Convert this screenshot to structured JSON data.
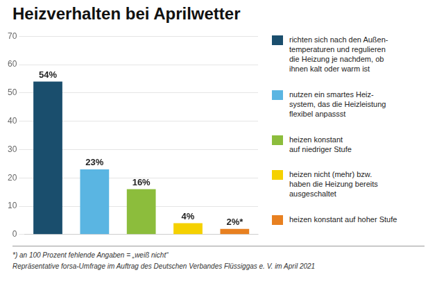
{
  "chart_data": {
    "type": "bar",
    "title": "Heizverhalten bei Aprilwetter",
    "categories": [
      "richten sich nach den Außen-\ntemperaturen und regulieren\ndie Heizung je nachdem, ob\nihnen kalt oder warm ist",
      "nutzen ein smartes Heiz-\nsystem, das die Heizleistung\nflexibel anpassst",
      "heizen konstant\nauf niedriger Stufe",
      "heizen nicht (mehr) bzw.\nhaben die Heizung bereits\nausgeschaltet",
      "heizen konstant auf hoher Stufe"
    ],
    "values": [
      54,
      23,
      16,
      4,
      2
    ],
    "value_labels": [
      "54%",
      "23%",
      "16%",
      "4%",
      "2%*"
    ],
    "data_labels": true,
    "colors": [
      "#1a4e6d",
      "#5ab5e2",
      "#8cbd3c",
      "#f5d100",
      "#e88020"
    ],
    "ylim": [
      0,
      70
    ],
    "yticks": [
      0,
      10,
      20,
      30,
      40,
      50,
      60,
      70
    ],
    "grid": true,
    "legend": "right",
    "tick_labels": "y",
    "annotations": [
      "*) an 100 Prozent fehlende Angaben = „weiß nicht“",
      "Repräsentative forsa-Umfrage im Auftrag des Deutschen Verbandes Flüssiggas e. V. im April 2021"
    ]
  }
}
